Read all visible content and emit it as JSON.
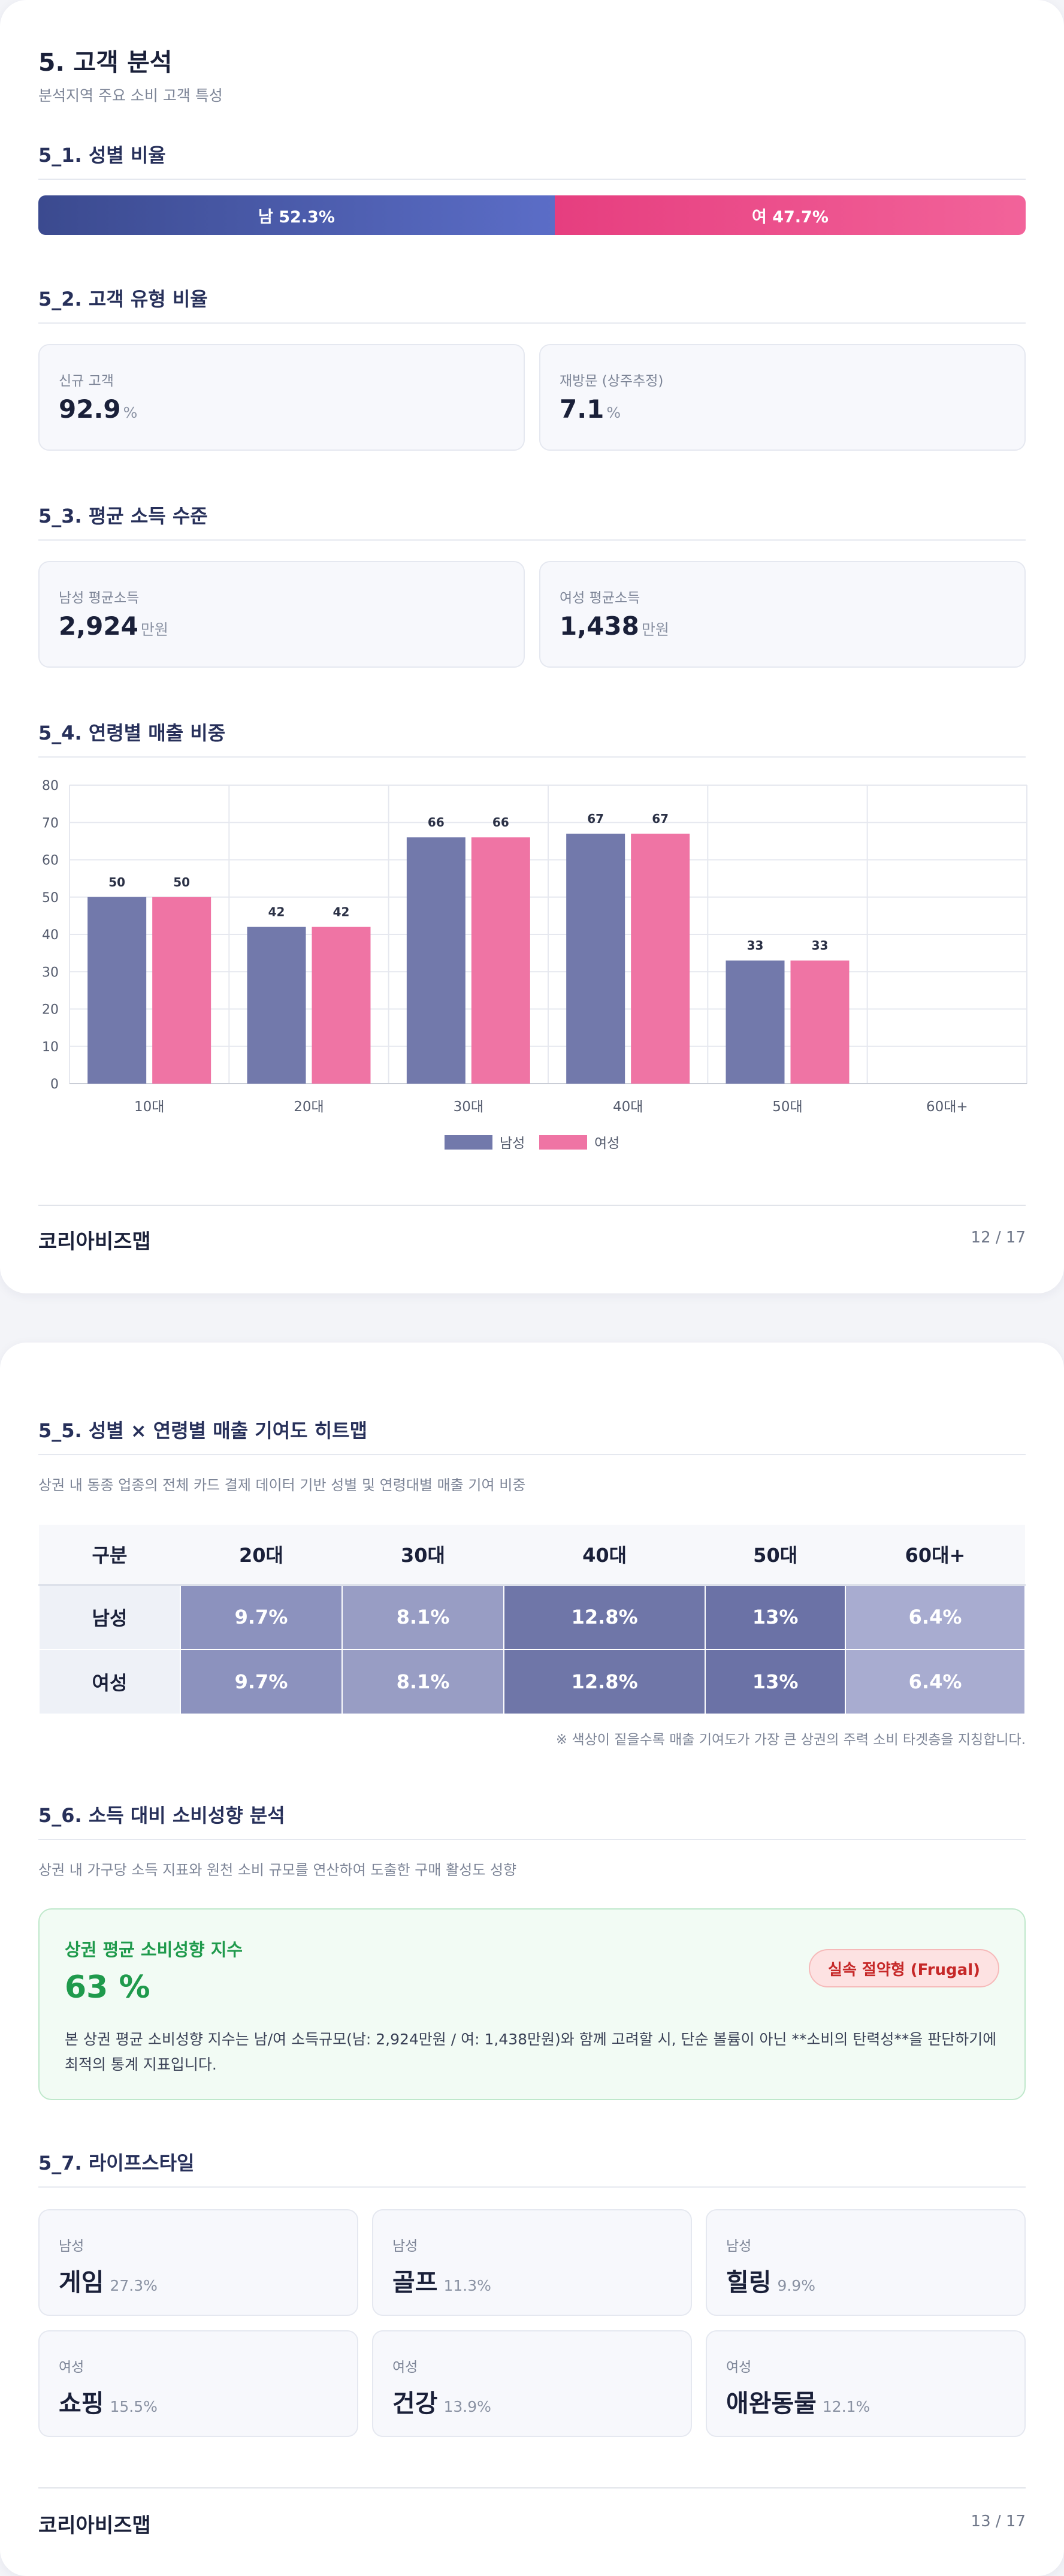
{
  "page1": {
    "title": "5. 고객 분석",
    "subtitle": "분석지역 주요 소비 고객 특성",
    "gender_ratio": {
      "title": "5_1. 성별 비율",
      "male_label": "남 52.3%",
      "female_label": "여 47.7%",
      "male_pct": 52.3,
      "female_pct": 47.7,
      "male_color": "#4a5aae",
      "female_color": "#ec4f8a"
    },
    "customer_type": {
      "title": "5_2. 고객 유형 비율",
      "cards": [
        {
          "label": "신규 고객",
          "value": "92.9",
          "unit": "%"
        },
        {
          "label": "재방문 (상주추정)",
          "value": "7.1",
          "unit": "%"
        }
      ]
    },
    "income": {
      "title": "5_3. 평균 소득 수준",
      "cards": [
        {
          "label": "남성 평균소득",
          "value": "2,924",
          "unit": "만원"
        },
        {
          "label": "여성 평균소득",
          "value": "1,438",
          "unit": "만원"
        }
      ]
    },
    "age_sales": {
      "title": "5_4. 연령별 매출 비중"
    },
    "footer": {
      "brand": "코리아비즈맵",
      "page": "12 / 17"
    }
  },
  "chart_data": {
    "type": "bar",
    "title": "",
    "categories": [
      "10대",
      "20대",
      "30대",
      "40대",
      "50대",
      "60대+"
    ],
    "series": [
      {
        "name": "남성",
        "values": [
          50,
          42,
          66,
          67,
          33,
          0
        ],
        "labels": [
          "50",
          "42",
          "66",
          "67",
          "33",
          ""
        ],
        "color": "#7279ab"
      },
      {
        "name": "여성",
        "values": [
          50,
          42,
          66,
          67,
          33,
          0
        ],
        "labels": [
          "50",
          "42",
          "66",
          "67",
          "33",
          ""
        ],
        "color": "#ef74a4"
      }
    ],
    "ylim": [
      0,
      80
    ],
    "yticks": [
      "0",
      "10",
      "20",
      "30",
      "40",
      "50",
      "60",
      "70",
      "80"
    ],
    "grid": true,
    "legend": "bottom-center"
  },
  "page2": {
    "heatmap": {
      "title": "5_5. 성별 × 연령별 매출 기여도 히트맵",
      "desc": "상권 내 동종 업종의 전체 카드 결제 데이터 기반 성별 및 연령대별 매출 기여 비중",
      "corner": "구분",
      "columns": [
        "20대",
        "30대",
        "40대",
        "50대",
        "60대+"
      ],
      "rows": [
        {
          "label": "남성",
          "cells": [
            "9.7%",
            "8.1%",
            "12.8%",
            "13%",
            "6.4%"
          ]
        },
        {
          "label": "여성",
          "cells": [
            "9.7%",
            "8.1%",
            "12.8%",
            "13%",
            "6.4%"
          ]
        }
      ],
      "cell_colors": [
        "#8c92be",
        "#989dc4",
        "#6f76a8",
        "#6b72a6",
        "#a8acd0"
      ],
      "note": "※ 색상이 짙을수록 매출 기여도가 가장 큰 상권의 주력 소비 타겟층을 지칭합니다."
    },
    "propensity": {
      "title": "5_6. 소득 대비 소비성향 분석",
      "desc": "상권 내 가구당 소득 지표와 원천 소비 규모를 연산하여 도출한 구매 활성도 성향",
      "box_title": "상권 평균 소비성향 지수",
      "value": "63 %",
      "badge": "실속 절약형 (Frugal)",
      "text": "본 상권 평균 소비성향 지수는 남/여 소득규모(남: 2,924만원 / 여: 1,438만원)와 함께 고려할 시, 단순 볼륨이 아닌 **소비의 탄력성**을 판단하기에 최적의 통계 지표입니다."
    },
    "lifestyle": {
      "title": "5_7. 라이프스타일",
      "items": [
        {
          "gender": "남성",
          "name": "게임",
          "pct": "27.3%"
        },
        {
          "gender": "남성",
          "name": "골프",
          "pct": "11.3%"
        },
        {
          "gender": "남성",
          "name": "힐링",
          "pct": "9.9%"
        },
        {
          "gender": "여성",
          "name": "쇼핑",
          "pct": "15.5%"
        },
        {
          "gender": "여성",
          "name": "건강",
          "pct": "13.9%"
        },
        {
          "gender": "여성",
          "name": "애완동물",
          "pct": "12.1%"
        }
      ]
    },
    "footer": {
      "brand": "코리아비즈맵",
      "page": "13 / 17"
    }
  }
}
